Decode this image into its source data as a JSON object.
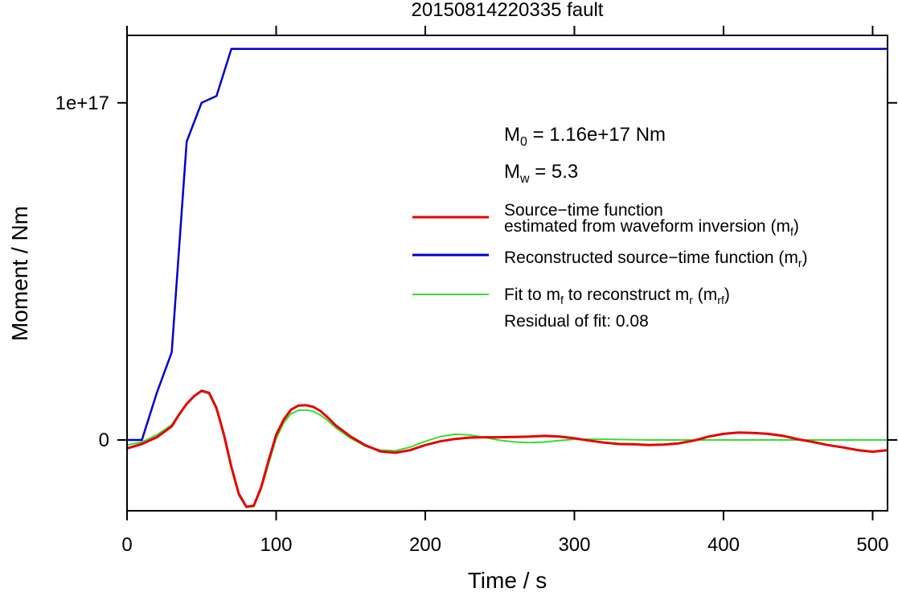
{
  "chart_data": {
    "type": "line",
    "title": "20150814220335 fault",
    "xlabel": "Time / s",
    "ylabel": "Moment / Nm",
    "xlim": [
      0,
      510
    ],
    "ylim": [
      -2.1e+16,
      1.2e+17
    ],
    "x_ticks": [
      {
        "value": 0,
        "label": "0"
      },
      {
        "value": 100,
        "label": "100"
      },
      {
        "value": 200,
        "label": "200"
      },
      {
        "value": 300,
        "label": "300"
      },
      {
        "value": 400,
        "label": "400"
      },
      {
        "value": 500,
        "label": "500"
      }
    ],
    "y_ticks": [
      {
        "value": 0,
        "label": "0"
      },
      {
        "value": 1e+17,
        "label": "1e+17"
      }
    ],
    "grid": false,
    "legend_position": "right",
    "annotations": {
      "m0": {
        "symbol": "M",
        "sub": "0",
        "text": " = 1.16e+17 Nm"
      },
      "mw": {
        "symbol": "M",
        "sub": "w",
        "text": " = 5.3"
      },
      "residual": "Residual of fit: 0.08"
    },
    "series": [
      {
        "name_line1": "Source−time function",
        "name_line2": "estimated from waveform inversion (m",
        "name_sub": "f",
        "name_tail": ")",
        "color": "#e60000",
        "x": [
          0,
          10,
          20,
          30,
          35,
          40,
          45,
          50,
          55,
          60,
          65,
          70,
          75,
          80,
          85,
          90,
          95,
          100,
          105,
          110,
          115,
          120,
          125,
          130,
          135,
          140,
          150,
          160,
          170,
          180,
          190,
          200,
          210,
          220,
          230,
          240,
          250,
          260,
          270,
          280,
          290,
          300,
          310,
          320,
          330,
          340,
          350,
          360,
          370,
          380,
          390,
          400,
          410,
          420,
          430,
          440,
          450,
          460,
          470,
          480,
          490,
          500,
          510
        ],
        "y": [
          -2500000000000000.0,
          -1200000000000000.0,
          800000000000000.0,
          4000000000000000.0,
          7600000000000000.0,
          1.07e+16,
          1.3e+16,
          1.46e+16,
          1.4e+16,
          9500000000000000.0,
          1500000000000000.0,
          -8000000000000000.0,
          -1.6e+16,
          -1.98e+16,
          -1.95e+16,
          -1.4e+16,
          -6000000000000000.0,
          1500000000000000.0,
          6000000000000000.0,
          9000000000000000.0,
          1.02e+16,
          1.03e+16,
          9800000000000000.0,
          8500000000000000.0,
          6500000000000000.0,
          4300000000000000.0,
          1000000000000000.0,
          -1600000000000000.0,
          -3400000000000000.0,
          -3800000000000000.0,
          -3000000000000000.0,
          -1500000000000000.0,
          -400000000000000.0,
          300000000000000.0,
          700000000000000.0,
          800000000000000.0,
          800000000000000.0,
          900000000000000.0,
          1000000000000000.0,
          1200000000000000.0,
          1000000000000000.0,
          500000000000000.0,
          -200000000000000.0,
          -800000000000000.0,
          -1200000000000000.0,
          -1300000000000000.0,
          -1500000000000000.0,
          -1400000000000000.0,
          -1000000000000000.0,
          -200000000000000.0,
          1000000000000000.0,
          1800000000000000.0,
          2200000000000000.0,
          2100000000000000.0,
          1800000000000000.0,
          1200000000000000.0,
          200000000000000.0,
          -600000000000000.0,
          -1500000000000000.0,
          -2200000000000000.0,
          -3000000000000000.0,
          -3500000000000000.0,
          -3000000000000000.0
        ]
      },
      {
        "name_line1": "Reconstructed source−time function (m",
        "name_sub": "r",
        "name_tail": ")",
        "color": "#0000cc",
        "x": [
          0,
          10,
          20,
          30,
          40,
          50,
          60,
          70,
          510
        ],
        "y": [
          0,
          0,
          1.4e+16,
          2.6e+16,
          8.85e+16,
          1e+17,
          1.02e+17,
          1.16e+17,
          1.16e+17
        ]
      },
      {
        "name_line1": "Fit to m",
        "name_sub1": "f",
        "name_mid": " to reconstruct m",
        "name_sub2": "r",
        "name_mid2": " (m",
        "name_sub3": "rf",
        "name_tail": ")",
        "color": "#33dd33",
        "x": [
          0,
          10,
          20,
          30,
          35,
          40,
          45,
          50,
          55,
          60,
          65,
          70,
          75,
          80,
          85,
          90,
          95,
          100,
          105,
          110,
          115,
          120,
          125,
          130,
          135,
          140,
          150,
          160,
          170,
          180,
          190,
          200,
          210,
          220,
          230,
          240,
          250,
          260,
          270,
          280,
          290,
          300,
          320,
          350,
          380,
          400,
          450,
          510
        ],
        "y": [
          -1500000000000000.0,
          -600000000000000.0,
          1500000000000000.0,
          4500000000000000.0,
          7800000000000000.0,
          1.07e+16,
          1.3e+16,
          1.44e+16,
          1.37e+16,
          9000000000000000.0,
          1000000000000000.0,
          -8500000000000000.0,
          -1.65e+16,
          -2e+16,
          -1.97e+16,
          -1.45e+16,
          -7000000000000000.0,
          400000000000000.0,
          5000000000000000.0,
          7800000000000000.0,
          8800000000000000.0,
          8900000000000000.0,
          8500000000000000.0,
          7300000000000000.0,
          5600000000000000.0,
          3600000000000000.0,
          500000000000000.0,
          -1900000000000000.0,
          -3000000000000000.0,
          -3200000000000000.0,
          -2100000000000000.0,
          -400000000000000.0,
          1000000000000000.0,
          1700000000000000.0,
          1500000000000000.0,
          700000000000000.0,
          -100000000000000.0,
          -600000000000000.0,
          -800000000000000.0,
          -600000000000000.0,
          -200000000000000.0,
          200000000000000.0,
          200000000000000.0,
          0,
          0,
          0,
          0,
          0
        ]
      }
    ]
  }
}
